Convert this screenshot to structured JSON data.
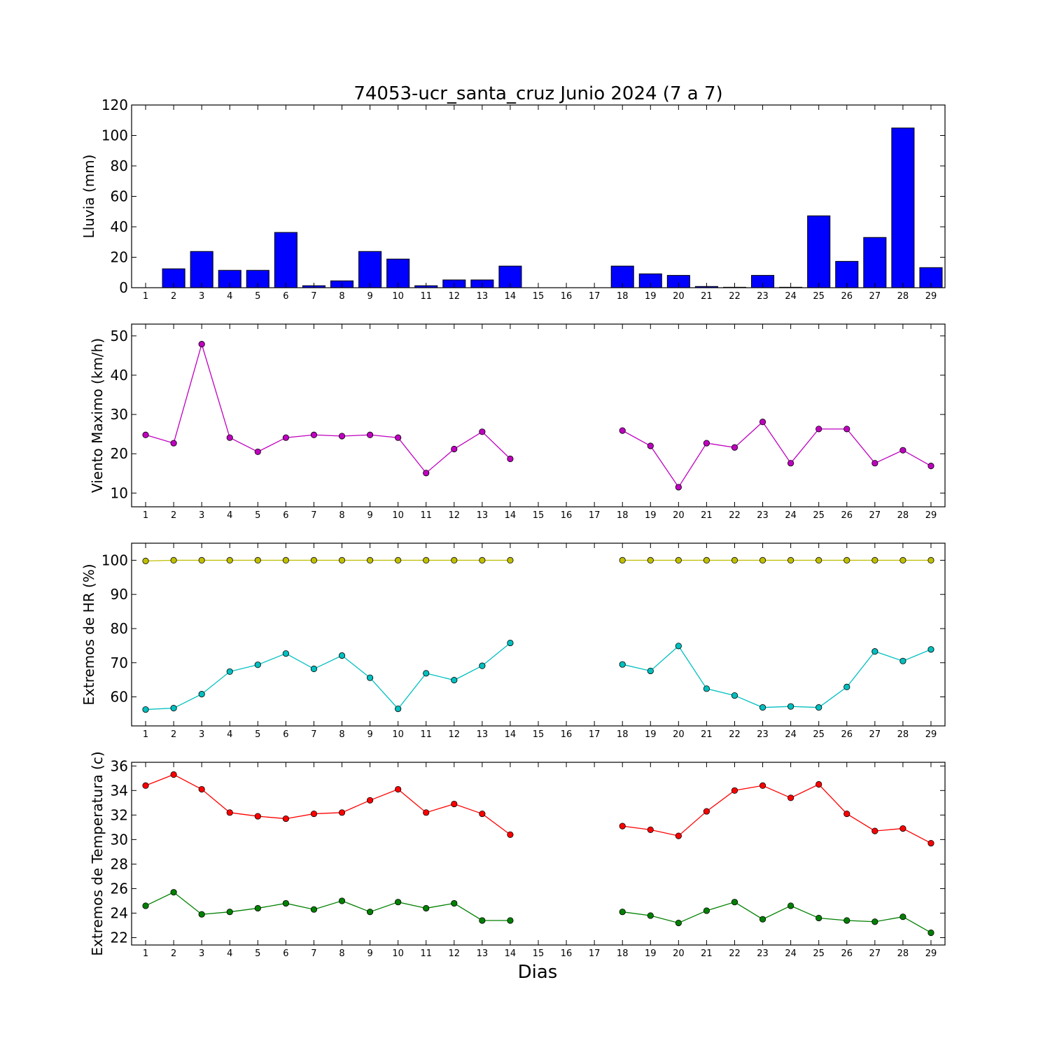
{
  "chart_data": {
    "title": "74053-ucr_santa_cruz Junio 2024  (7 a 7)",
    "xlabel": "Dias",
    "days": [
      1,
      2,
      3,
      4,
      5,
      6,
      7,
      8,
      9,
      10,
      11,
      12,
      13,
      14,
      15,
      16,
      17,
      18,
      19,
      20,
      21,
      22,
      23,
      24,
      25,
      26,
      27,
      28,
      29
    ],
    "panels": [
      {
        "type": "bar",
        "ylabel": "Lluvia (mm)",
        "ylim": [
          0,
          120
        ],
        "yticks": [
          0,
          20,
          40,
          60,
          80,
          100,
          120
        ],
        "series": [
          {
            "color": "#0000ff",
            "values": [
              0,
              12.4,
              23.8,
              11.4,
              11.4,
              36.3,
              1.3,
              4.5,
              23.8,
              18.8,
              1.3,
              5.1,
              5.1,
              14.2,
              null,
              null,
              null,
              14.2,
              9.1,
              8.1,
              0.8,
              0.3,
              8.1,
              0.3,
              47.2,
              17.3,
              33.0,
              104.9,
              13.2
            ]
          }
        ]
      },
      {
        "type": "line",
        "ylabel": "Viento Maximo (km/h)",
        "ylim": [
          6.5,
          53
        ],
        "yticks": [
          10,
          20,
          30,
          40,
          50
        ],
        "series": [
          {
            "color": "#bf00bf",
            "values": [
              24.8,
              22.7,
              47.9,
              24.1,
              20.5,
              24.1,
              24.8,
              24.5,
              24.8,
              24.1,
              15.1,
              21.2,
              25.6,
              18.7,
              null,
              null,
              null,
              25.9,
              22.0,
              11.5,
              22.7,
              21.6,
              28.1,
              17.6,
              26.3,
              26.3,
              17.6,
              20.9,
              16.9
            ]
          }
        ]
      },
      {
        "type": "line",
        "ylabel": "Extremos de HR (%)",
        "ylim": [
          51.5,
          105
        ],
        "yticks": [
          60,
          70,
          80,
          90,
          100
        ],
        "series": [
          {
            "color": "#bfbf00",
            "values": [
              99.8,
              100,
              100,
              100,
              100,
              100,
              100,
              100,
              100,
              100,
              100,
              100,
              100,
              100,
              null,
              null,
              null,
              100,
              100,
              100,
              100,
              100,
              100,
              100,
              100,
              100,
              100,
              100,
              100
            ]
          },
          {
            "color": "#00bfbf",
            "values": [
              56.3,
              56.7,
              60.8,
              67.4,
              69.4,
              72.7,
              68.2,
              72.1,
              65.6,
              56.5,
              66.9,
              64.9,
              69.1,
              75.8,
              null,
              null,
              null,
              69.5,
              67.6,
              74.9,
              62.4,
              60.4,
              56.9,
              57.2,
              56.9,
              62.9,
              73.3,
              70.5,
              73.9
            ]
          }
        ]
      },
      {
        "type": "line",
        "ylabel": "Extremos de Temperatura (c)",
        "ylim": [
          21.4,
          36.3
        ],
        "yticks": [
          22,
          24,
          26,
          28,
          30,
          32,
          34,
          36
        ],
        "series": [
          {
            "color": "#ff0000",
            "values": [
              34.4,
              35.3,
              34.1,
              32.2,
              31.9,
              31.7,
              32.1,
              32.2,
              33.2,
              34.1,
              32.2,
              32.9,
              32.1,
              30.4,
              null,
              null,
              null,
              31.1,
              30.8,
              30.3,
              32.3,
              34.0,
              34.4,
              33.4,
              34.5,
              32.1,
              30.7,
              30.9,
              29.7
            ]
          },
          {
            "color": "#008000",
            "values": [
              24.6,
              25.7,
              23.9,
              24.1,
              24.4,
              24.8,
              24.3,
              25.0,
              24.1,
              24.9,
              24.4,
              24.8,
              23.4,
              23.4,
              null,
              null,
              null,
              24.1,
              23.8,
              23.2,
              24.2,
              24.9,
              23.5,
              24.6,
              23.6,
              23.4,
              23.3,
              23.7,
              22.4
            ]
          }
        ]
      }
    ]
  }
}
